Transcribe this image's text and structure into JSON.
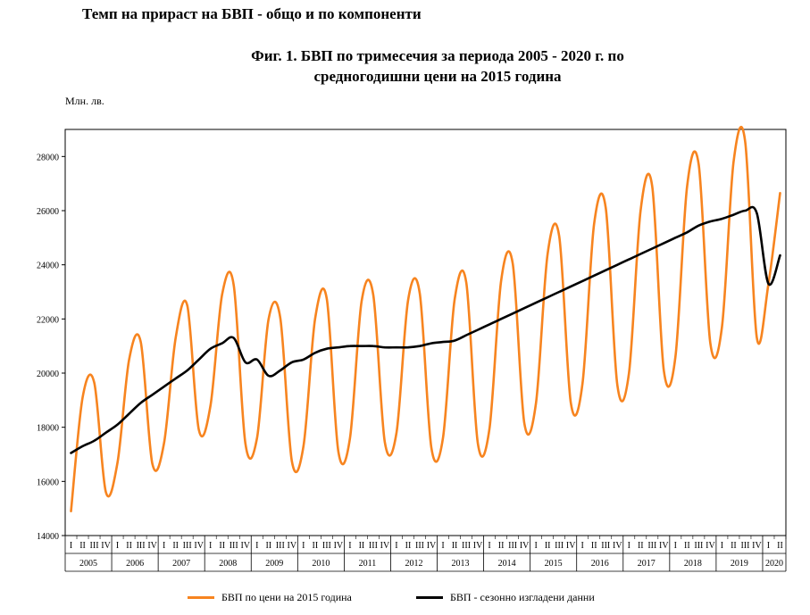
{
  "page": {
    "heading": "Темп на прираст на БВП - общо и по компоненти"
  },
  "chart_data": {
    "type": "line",
    "title": "Фиг. 1. БВП по тримесечия за периода 2005 - 2020 г. по средногодишни цени на 2015 година",
    "title_lines": [
      "Фиг. 1. БВП по тримесечия за периода 2005 - 2020 г. по",
      "средногодишни цени на 2015 година"
    ],
    "ylabel": "Млн. лв.",
    "xlabel": "",
    "ylim": [
      14000,
      29000
    ],
    "yticks": [
      14000,
      16000,
      18000,
      20000,
      22000,
      24000,
      26000,
      28000
    ],
    "grid": false,
    "legend_position": "bottom",
    "quarter_labels": [
      "I",
      "II",
      "III",
      "IV"
    ],
    "years": [
      "2005",
      "2006",
      "2007",
      "2008",
      "2009",
      "2010",
      "2011",
      "2012",
      "2013",
      "2014",
      "2015",
      "2016",
      "2017",
      "2018",
      "2019",
      "2020"
    ],
    "series": [
      {
        "name": "БВП по цени на 2015 година",
        "color": "#F7841F",
        "values": [
          14900,
          19100,
          19650,
          15600,
          16700,
          20500,
          21150,
          16650,
          17400,
          21300,
          22500,
          17900,
          18800,
          22900,
          23250,
          17400,
          17600,
          22000,
          22050,
          16750,
          17300,
          22000,
          22750,
          17100,
          17600,
          22650,
          22900,
          17450,
          17800,
          22700,
          22950,
          17250,
          17600,
          22700,
          23350,
          17400,
          17950,
          23400,
          24050,
          18150,
          18900,
          24400,
          25050,
          18900,
          19600,
          25500,
          26100,
          19550,
          20000,
          26000,
          26900,
          20100,
          20600,
          26900,
          27700,
          21100,
          21700,
          27800,
          28550,
          21300,
          23300,
          26650
        ]
      },
      {
        "name": "БВП - сезонно изгладени данни",
        "color": "#000000",
        "values": [
          17050,
          17300,
          17500,
          17800,
          18100,
          18500,
          18900,
          19200,
          19500,
          19800,
          20100,
          20500,
          20900,
          21100,
          21300,
          20400,
          20500,
          19900,
          20100,
          20400,
          20500,
          20750,
          20900,
          20950,
          21000,
          21000,
          21000,
          20950,
          20950,
          20950,
          21000,
          21100,
          21150,
          21200,
          21400,
          21600,
          21800,
          22000,
          22200,
          22400,
          22600,
          22800,
          23000,
          23200,
          23400,
          23600,
          23800,
          24000,
          24200,
          24400,
          24600,
          24800,
          25000,
          25200,
          25450,
          25600,
          25700,
          25850,
          26000,
          25900,
          23300,
          24350
        ]
      }
    ]
  }
}
